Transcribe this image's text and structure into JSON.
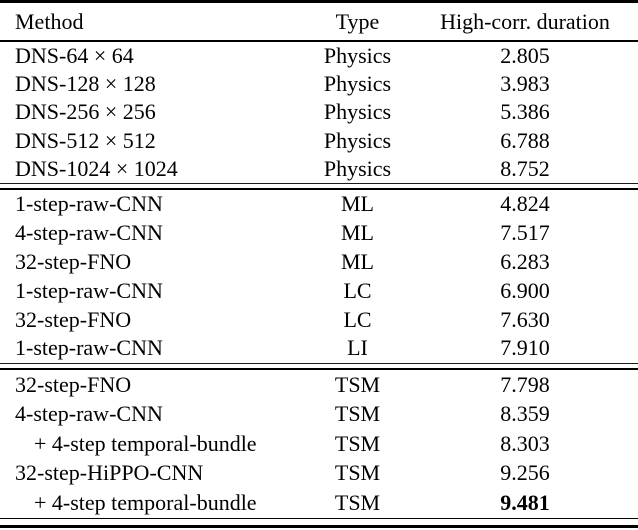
{
  "colors": {
    "text": "#000000",
    "background": "#ffffff",
    "rule": "#000000"
  },
  "table": {
    "columns": [
      "Method",
      "Type",
      "High-corr. duration"
    ],
    "sections": [
      {
        "rows": [
          {
            "method": "DNS-64 × 64",
            "type": "Physics",
            "duration": "2.805",
            "indented": false,
            "bold_duration": false
          },
          {
            "method": "DNS-128 × 128",
            "type": "Physics",
            "duration": "3.983",
            "indented": false,
            "bold_duration": false
          },
          {
            "method": "DNS-256 × 256",
            "type": "Physics",
            "duration": "5.386",
            "indented": false,
            "bold_duration": false
          },
          {
            "method": "DNS-512 × 512",
            "type": "Physics",
            "duration": "6.788",
            "indented": false,
            "bold_duration": false
          },
          {
            "method": "DNS-1024 × 1024",
            "type": "Physics",
            "duration": "8.752",
            "indented": false,
            "bold_duration": false
          }
        ]
      },
      {
        "rows": [
          {
            "method": "1-step-raw-CNN",
            "type": "ML",
            "duration": "4.824",
            "indented": false,
            "bold_duration": false
          },
          {
            "method": "4-step-raw-CNN",
            "type": "ML",
            "duration": "7.517",
            "indented": false,
            "bold_duration": false
          },
          {
            "method": "32-step-FNO",
            "type": "ML",
            "duration": "6.283",
            "indented": false,
            "bold_duration": false
          },
          {
            "method": "1-step-raw-CNN",
            "type": "LC",
            "duration": "6.900",
            "indented": false,
            "bold_duration": false
          },
          {
            "method": "32-step-FNO",
            "type": "LC",
            "duration": "7.630",
            "indented": false,
            "bold_duration": false
          },
          {
            "method": "1-step-raw-CNN",
            "type": "LI",
            "duration": "7.910",
            "indented": false,
            "bold_duration": false
          }
        ]
      },
      {
        "rows": [
          {
            "method": "32-step-FNO",
            "type": "TSM",
            "duration": "7.798",
            "indented": false,
            "bold_duration": false
          },
          {
            "method": "4-step-raw-CNN",
            "type": "TSM",
            "duration": "8.359",
            "indented": false,
            "bold_duration": false
          },
          {
            "method": "+ 4-step temporal-bundle",
            "type": "TSM",
            "duration": "8.303",
            "indented": true,
            "bold_duration": false
          },
          {
            "method": "32-step-HiPPO-CNN",
            "type": "TSM",
            "duration": "9.256",
            "indented": false,
            "bold_duration": false
          },
          {
            "method": "+ 4-step temporal-bundle",
            "type": "TSM",
            "duration": "9.481",
            "indented": true,
            "bold_duration": true
          }
        ]
      }
    ]
  }
}
